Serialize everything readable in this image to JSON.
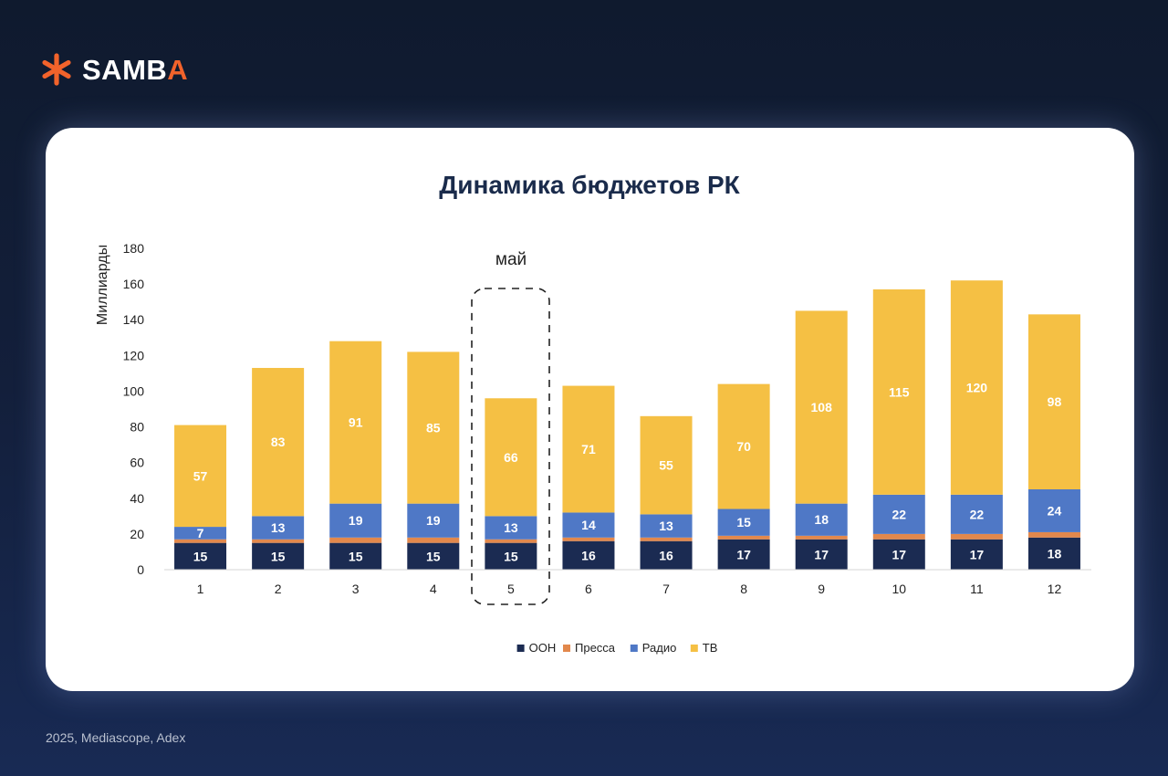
{
  "brand": {
    "name_main": "SAMB",
    "name_accent": "A",
    "icon": "asterisk-logo-icon"
  },
  "source_note": "2025, Mediascope, Adex",
  "colors": {
    "OOH": "#1b2b52",
    "Press": "#e2884c",
    "Radio": "#4f78c6",
    "TV": "#f5c044",
    "title": "#1a2b4b",
    "accent": "#f2632b"
  },
  "chart_data": {
    "type": "bar",
    "stacked": true,
    "title": "Динамика бюджетов РК",
    "xlabel": "",
    "ylabel": "Миллиарды",
    "ylim": [
      0,
      180
    ],
    "yticks": [
      0,
      20,
      40,
      60,
      80,
      100,
      120,
      140,
      160,
      180
    ],
    "grid": false,
    "legend_position": "bottom",
    "categories": [
      "1",
      "2",
      "3",
      "4",
      "5",
      "6",
      "7",
      "8",
      "9",
      "10",
      "11",
      "12"
    ],
    "series": [
      {
        "name": "OOH",
        "color": "#1b2b52",
        "values": [
          15,
          15,
          15,
          15,
          15,
          16,
          16,
          17,
          17,
          17,
          17,
          18
        ],
        "labeled": true
      },
      {
        "name": "Пресса",
        "color": "#e2884c",
        "values": [
          2,
          2,
          3,
          3,
          2,
          2,
          2,
          2,
          2,
          3,
          3,
          3
        ],
        "labeled": false
      },
      {
        "name": "Радио",
        "color": "#4f78c6",
        "values": [
          7,
          13,
          19,
          19,
          13,
          14,
          13,
          15,
          18,
          22,
          22,
          24
        ],
        "labeled": true
      },
      {
        "name": "ТВ",
        "color": "#f5c044",
        "values": [
          57,
          83,
          91,
          85,
          66,
          71,
          55,
          70,
          108,
          115,
          120,
          98
        ],
        "labeled": true
      }
    ],
    "annotation": {
      "text": "май",
      "category": "5",
      "style": "dashed-rounded-box"
    }
  }
}
